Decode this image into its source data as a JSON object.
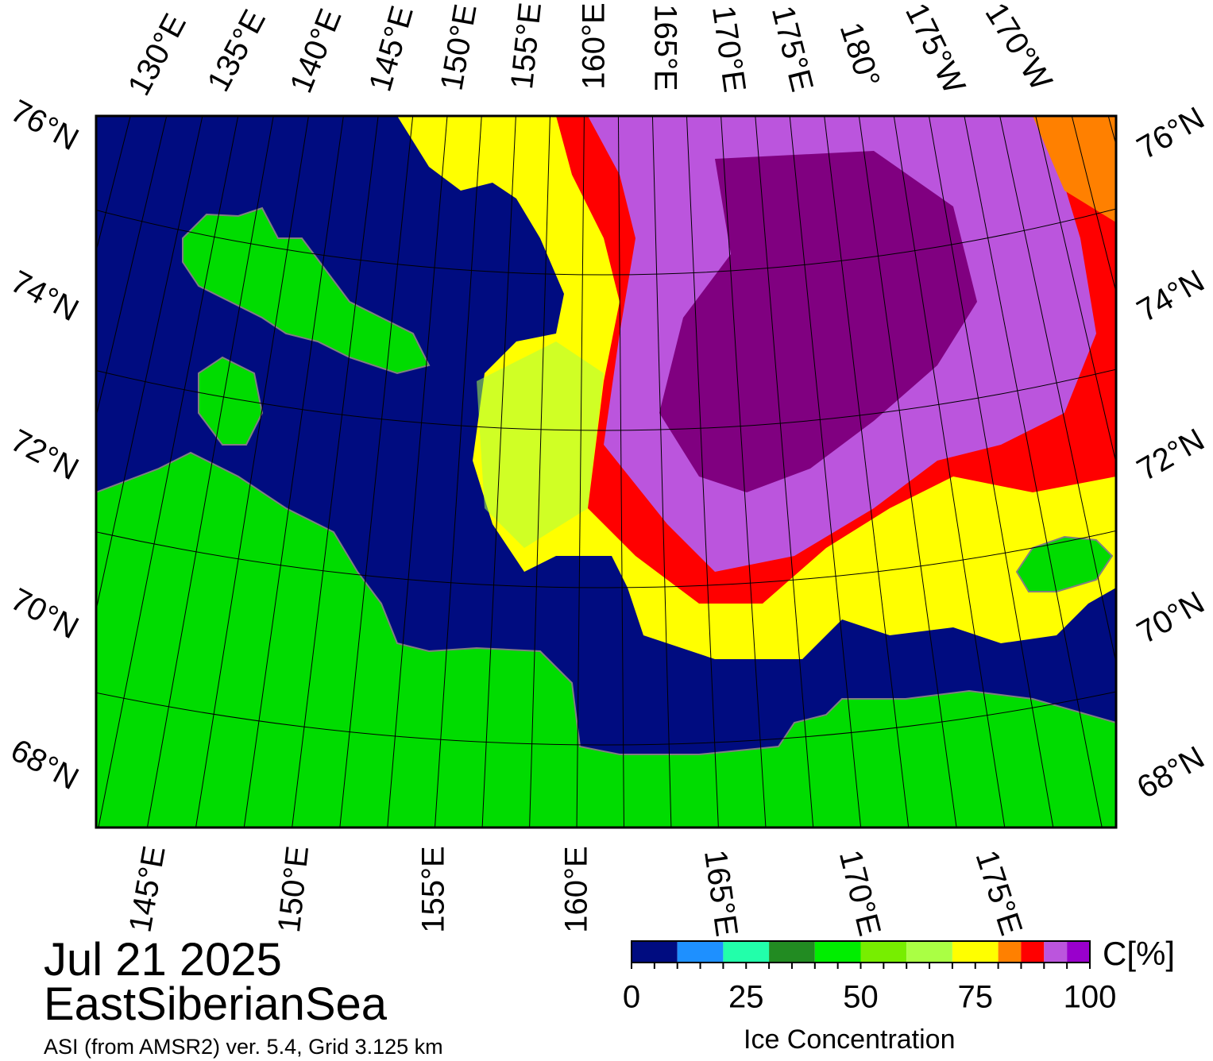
{
  "date": "Jul 21 2025",
  "region": "EastSiberianSea",
  "source": "ASI (from AMSR2) ver. 5.4,  Grid 3.125 km",
  "map": {
    "top_lon_labels": [
      "130°E",
      "135°E",
      "140°E",
      "145°E",
      "150°E",
      "155°E",
      "160°E",
      "165°E",
      "170°E",
      "175°E",
      "180°",
      "175°W",
      "170°W"
    ],
    "bottom_lon_labels": [
      "145°E",
      "150°E",
      "155°E",
      "160°E",
      "165°E",
      "170°E",
      "175°E"
    ],
    "left_lat_labels": [
      "76°N",
      "74°N",
      "72°N",
      "70°N",
      "68°N"
    ],
    "right_lat_labels": [
      "76°N",
      "74°N",
      "72°N",
      "70°N",
      "68°N"
    ],
    "colors": {
      "ocean": "#000c80",
      "land": "#00dc00",
      "coast": "#808080",
      "ice_high": "#800080",
      "ice_90": "#bb55dd",
      "ice_85": "#ff0000",
      "ice_80": "#ff8000",
      "ice_70": "#ffff00",
      "ice_60": "#aaff44",
      "ice_50": "#77ee00"
    }
  },
  "colorbar": {
    "unit_label": "C[%]",
    "title": "Ice Concentration",
    "tick_labels": [
      "0",
      "25",
      "50",
      "75",
      "100"
    ],
    "segments": [
      {
        "from": 0,
        "to": 10,
        "color": "#000c80"
      },
      {
        "from": 10,
        "to": 20,
        "color": "#1e90ff"
      },
      {
        "from": 20,
        "to": 30,
        "color": "#22ffaa"
      },
      {
        "from": 30,
        "to": 40,
        "color": "#228b22"
      },
      {
        "from": 40,
        "to": 50,
        "color": "#00ee00"
      },
      {
        "from": 50,
        "to": 60,
        "color": "#77ee00"
      },
      {
        "from": 60,
        "to": 70,
        "color": "#aaff44"
      },
      {
        "from": 70,
        "to": 80,
        "color": "#ffff00"
      },
      {
        "from": 80,
        "to": 85,
        "color": "#ff8000"
      },
      {
        "from": 85,
        "to": 90,
        "color": "#ff0000"
      },
      {
        "from": 90,
        "to": 95,
        "color": "#bb55dd"
      },
      {
        "from": 95,
        "to": 100,
        "color": "#9900cc"
      }
    ]
  }
}
